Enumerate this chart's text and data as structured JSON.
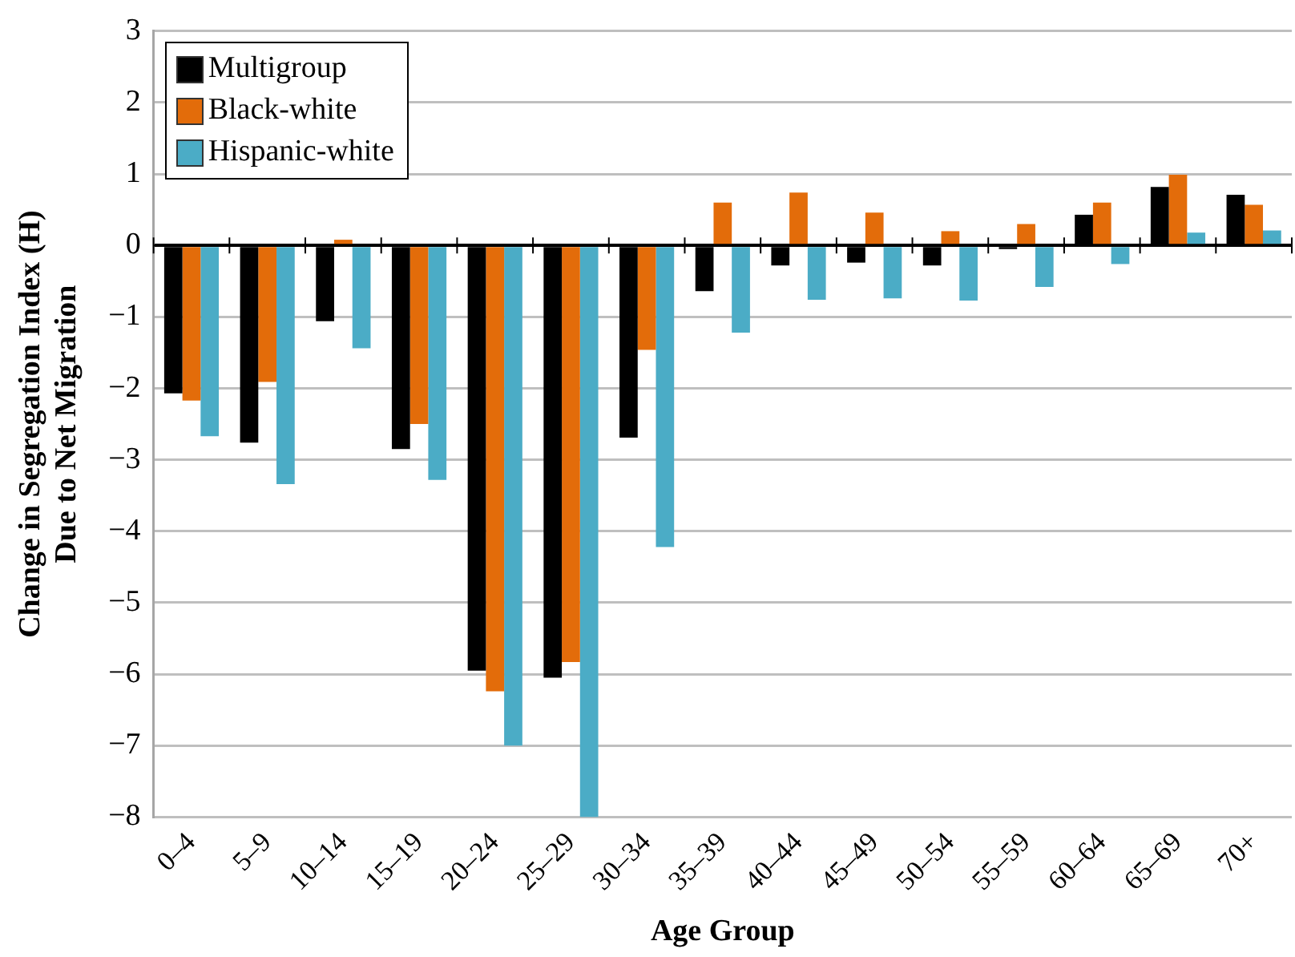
{
  "chart_data": {
    "type": "bar",
    "xlabel": "Age Group",
    "ylabel": "Change in Segregation Index (H)\nDue to Net Migration",
    "categories": [
      "0–4",
      "5–9",
      "10–14",
      "15–19",
      "20–24",
      "25–29",
      "30–34",
      "35–39",
      "40–44",
      "45–49",
      "50–54",
      "55–59",
      "60–64",
      "65–69",
      "70+"
    ],
    "series": [
      {
        "name": "Multigroup",
        "color": "#000000",
        "values": [
          -2.07,
          -2.76,
          -1.06,
          -2.85,
          -5.95,
          -6.05,
          -2.69,
          -0.64,
          -0.28,
          -0.24,
          -0.28,
          -0.05,
          0.43,
          0.82,
          0.71
        ]
      },
      {
        "name": "Black-white",
        "color": "#e36c0a",
        "values": [
          -2.17,
          -1.91,
          0.08,
          -2.5,
          -6.24,
          -5.83,
          -1.46,
          0.6,
          0.74,
          0.46,
          0.2,
          0.3,
          0.6,
          0.99,
          0.57
        ]
      },
      {
        "name": "Hispanic-white",
        "color": "#4bacc6",
        "values": [
          -2.67,
          -3.34,
          -1.44,
          -3.28,
          -7.0,
          -8.0,
          -4.22,
          -1.22,
          -0.76,
          -0.74,
          -0.77,
          -0.58,
          -0.26,
          0.18,
          0.21
        ]
      }
    ],
    "ylim": [
      -8,
      3
    ],
    "yticks": [
      -8,
      -7,
      -6,
      -5,
      -4,
      -3,
      -2,
      -1,
      0,
      1,
      2,
      3
    ],
    "grid": "y",
    "legend": "top left"
  }
}
